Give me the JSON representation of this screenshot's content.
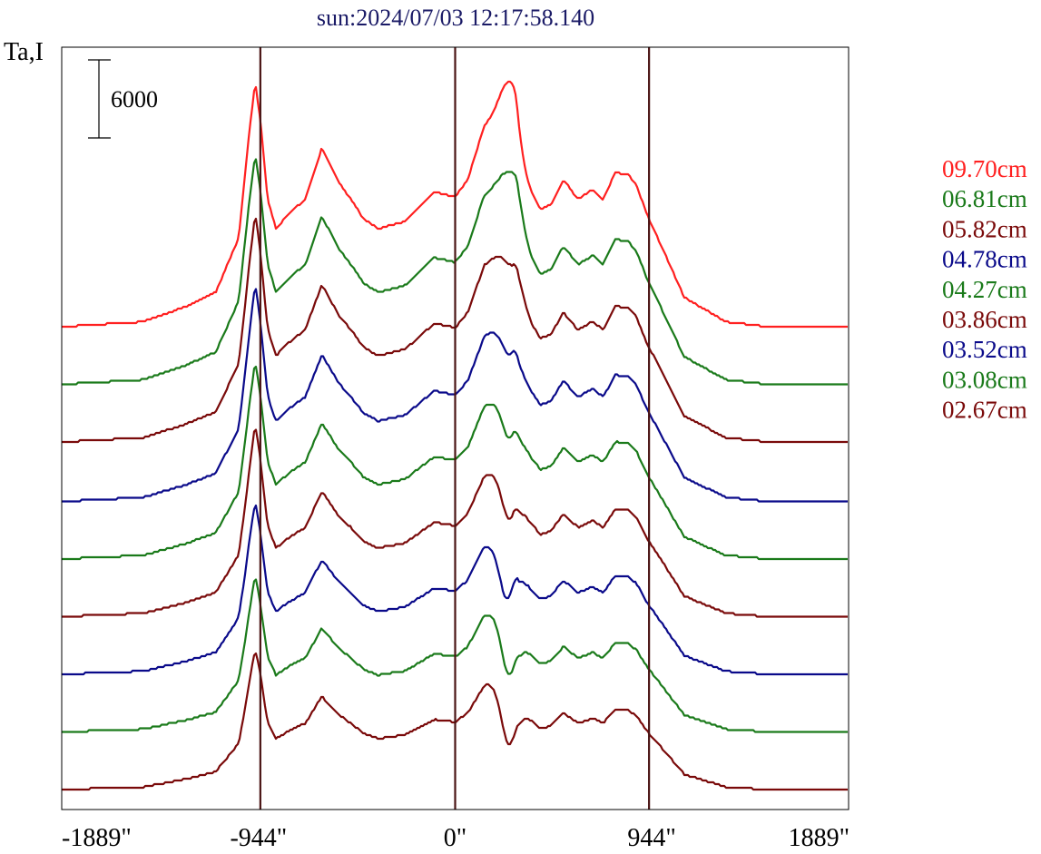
{
  "chart_data": {
    "type": "line",
    "title": "sun:2024/07/03 12:17:58.140",
    "ylabel": "Ta,I",
    "scale_bar_label": "6000",
    "scale_bar_value": 6000,
    "x_ticks": [
      {
        "label": "-1889\"",
        "value": -1889
      },
      {
        "label": "-944\"",
        "value": -944
      },
      {
        "label": "0\"",
        "value": 0
      },
      {
        "label": "944\"",
        "value": 944
      },
      {
        "label": "1889\"",
        "value": 1889
      }
    ],
    "xlim": [
      -1889,
      1889
    ],
    "vertical_lines": [
      -944,
      0,
      944
    ],
    "colors": {
      "title": "#1a1a66",
      "axis": "#000000",
      "vline": "#4a1414",
      "red": "#ff2020",
      "green": "#1a7a1a",
      "darkred": "#7a0a0a",
      "blue": "#0a0a8a"
    },
    "profile_shape": {
      "x": [
        -1889,
        -1500,
        -1300,
        -1150,
        -1040,
        -990,
        -960,
        -935,
        -900,
        -860,
        -800,
        -720,
        -640,
        -560,
        -500,
        -440,
        -370,
        -240,
        -100,
        0,
        60,
        140,
        200,
        270,
        310,
        360,
        410,
        460,
        520,
        590,
        660,
        710,
        770,
        830,
        870,
        920,
        990,
        1100,
        1300,
        1500,
        1889
      ],
      "y": [
        0,
        0.02,
        0.08,
        0.14,
        0.36,
        0.78,
        1.0,
        0.84,
        0.52,
        0.4,
        0.46,
        0.52,
        0.73,
        0.59,
        0.52,
        0.44,
        0.4,
        0.43,
        0.55,
        0.53,
        0.6,
        0.82,
        0.87,
        0.94,
        0.63,
        0.55,
        0.48,
        0.5,
        0.6,
        0.52,
        0.56,
        0.52,
        0.63,
        0.62,
        0.58,
        0.46,
        0.33,
        0.12,
        0.02,
        0.0,
        0.0
      ]
    },
    "series": [
      {
        "name": "09.70cm",
        "color": "#ff2020",
        "baseline": 0,
        "peak_left": 0.5,
        "peak_right": 1.0,
        "hump_amp": 0.52,
        "peak_pos": 260
      },
      {
        "name": "06.81cm",
        "color": "#1a7a1a",
        "baseline": 0,
        "peak_left": 0.5,
        "peak_right": 0.92,
        "hump_amp": 0.45,
        "peak_pos": 270
      },
      {
        "name": "05.82cm",
        "color": "#7a0a0a",
        "baseline": 0,
        "peak_left": 0.53,
        "peak_right": 0.82,
        "hump_amp": 0.4,
        "peak_pos": 270
      },
      {
        "name": "04.78cm",
        "color": "#0a0a8a",
        "baseline": 0,
        "peak_left": 0.54,
        "peak_right": 0.73,
        "hump_amp": 0.35,
        "peak_pos": 260
      },
      {
        "name": "04.27cm",
        "color": "#1a7a1a",
        "baseline": 0,
        "peak_left": 0.53,
        "peak_right": 0.65,
        "hump_amp": 0.33,
        "peak_pos": 260
      },
      {
        "name": "03.86cm",
        "color": "#7a0a0a",
        "baseline": 0,
        "peak_left": 0.56,
        "peak_right": 0.57,
        "hump_amp": 0.33,
        "peak_pos": 260
      },
      {
        "name": "03.52cm",
        "color": "#0a0a8a",
        "baseline": 0,
        "peak_left": 0.55,
        "peak_right": 0.48,
        "hump_amp": 0.3,
        "peak_pos": 250
      },
      {
        "name": "03.08cm",
        "color": "#1a7a1a",
        "baseline": 0,
        "peak_left": 0.55,
        "peak_right": 0.4,
        "hump_amp": 0.28,
        "peak_pos": 260
      },
      {
        "name": "02.67cm",
        "color": "#7a0a0a",
        "baseline": 0,
        "peak_left": 0.55,
        "peak_right": 0.35,
        "hump_amp": 0.26,
        "peak_pos": 260
      }
    ]
  }
}
